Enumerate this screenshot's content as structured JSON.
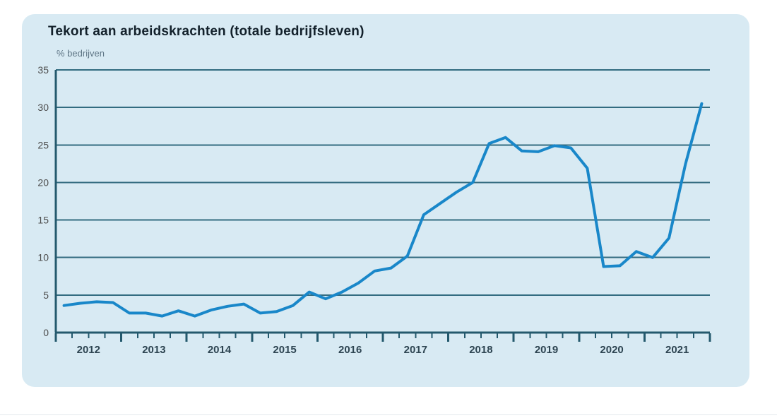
{
  "page": {
    "background": "#FFFFFF"
  },
  "card": {
    "background": "#D8EAF3"
  },
  "chart": {
    "title": "Tekort aan arbeidskrachten (totale bedrijfsleven)",
    "ylabel": "% bedrijven"
  },
  "chart_data": {
    "type": "line",
    "title": "Tekort aan arbeidskrachten (totale bedrijfsleven)",
    "subtitle": "% bedrijven",
    "xlabel": "",
    "ylabel": "% bedrijven",
    "ylim": [
      0,
      35
    ],
    "ytick_step": 5,
    "ytick_labels": [
      "0",
      "5",
      "10",
      "15",
      "20",
      "25",
      "30",
      "35"
    ],
    "grid": "horizontal",
    "legend": "none",
    "x_year_labels": [
      "2012",
      "2013",
      "2014",
      "2015",
      "2016",
      "2017",
      "2018",
      "2019",
      "2020",
      "2021"
    ],
    "x_quarters": [
      "2012Q1",
      "2012Q2",
      "2012Q3",
      "2012Q4",
      "2013Q1",
      "2013Q2",
      "2013Q3",
      "2013Q4",
      "2014Q1",
      "2014Q2",
      "2014Q3",
      "2014Q4",
      "2015Q1",
      "2015Q2",
      "2015Q3",
      "2015Q4",
      "2016Q1",
      "2016Q2",
      "2016Q3",
      "2016Q4",
      "2017Q1",
      "2017Q2",
      "2017Q3",
      "2017Q4",
      "2018Q1",
      "2018Q2",
      "2018Q3",
      "2018Q4",
      "2019Q1",
      "2019Q2",
      "2019Q3",
      "2019Q4",
      "2020Q1",
      "2020Q2",
      "2020Q3",
      "2020Q4",
      "2021Q1",
      "2021Q2",
      "2021Q3",
      "2021Q4"
    ],
    "values": [
      3.6,
      3.9,
      4.1,
      4.0,
      2.6,
      2.6,
      2.2,
      2.9,
      2.2,
      3.0,
      3.5,
      3.8,
      2.6,
      2.8,
      3.6,
      5.4,
      4.5,
      5.4,
      6.6,
      8.2,
      8.6,
      10.2,
      15.7,
      17.2,
      18.7,
      20.0,
      25.2,
      26.0,
      24.2,
      24.1,
      24.9,
      24.6,
      21.9,
      8.8,
      8.9,
      10.8,
      10.0,
      12.6,
      22.4,
      30.5
    ],
    "colors": {
      "line": "#1987C9",
      "grid": "#336C80",
      "axis": "#24596D",
      "year_labels": "#2E4552",
      "ytick_labels": "#4D4D4D",
      "title": "#13212B",
      "subtitle": "#5E7585",
      "card_background": "#D8EAF3"
    }
  }
}
